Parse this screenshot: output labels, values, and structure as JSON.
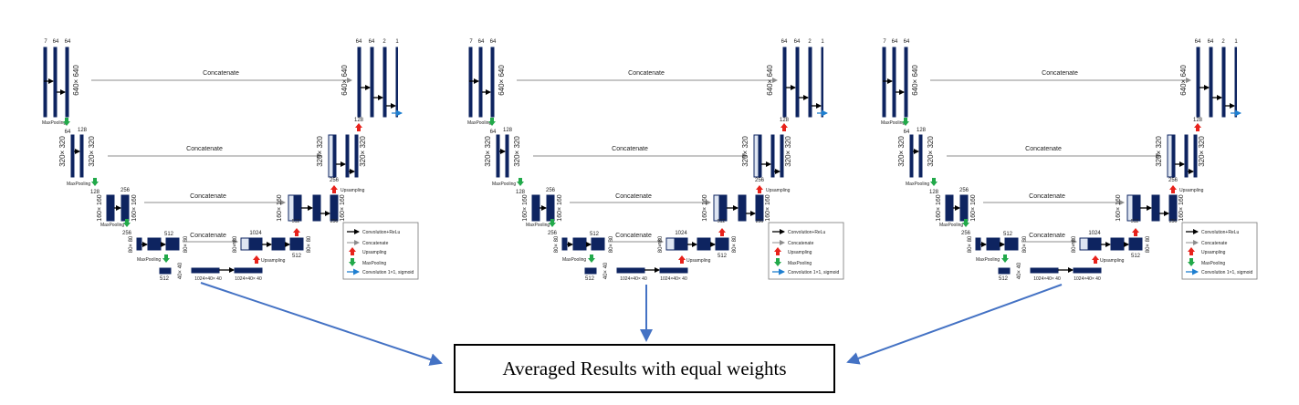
{
  "colors": {
    "block": "#0e2460",
    "concat_arrow": "#8c8c8c",
    "upsample": "#e8221b",
    "maxpool": "#22a94a",
    "final_conv": "#1f7fd0",
    "merge_arrow": "#4472c4"
  },
  "networks": [
    {
      "id": "unet-1"
    },
    {
      "id": "unet-2"
    },
    {
      "id": "unet-3"
    }
  ],
  "unet": {
    "in_channels": [
      "7",
      "64",
      "64"
    ],
    "out_channels": [
      "64",
      "64",
      "2",
      "1"
    ],
    "level_sizes": [
      "640× 640",
      "320× 320",
      "160× 160",
      "80× 80",
      "40× 40"
    ],
    "enc_channels": [
      "64",
      "128",
      "128",
      "256",
      "256",
      "512"
    ],
    "dec_channels": [
      "128",
      "256",
      "256",
      "512",
      "512",
      "1024"
    ],
    "bottom": {
      "left": "512",
      "mid": "1024×40× 40",
      "right": "1024×40× 40"
    },
    "concat_label": "Concatenate",
    "maxpool_label": "MaxPooling",
    "upsampling_label": "Upsampling",
    "legend": [
      {
        "icon": "black-arrow-icon",
        "label": "Convolution+ReLu"
      },
      {
        "icon": "gray-arrow-icon",
        "label": "Concatenate"
      },
      {
        "icon": "red-up-arrow-icon",
        "label": "Upsampling"
      },
      {
        "icon": "green-down-arrow-icon",
        "label": "MaxPooling"
      },
      {
        "icon": "blue-arrow-icon",
        "label": "Convolution 1×1, sigmoid"
      }
    ]
  },
  "result": {
    "label": "Averaged Results with equal weights"
  }
}
